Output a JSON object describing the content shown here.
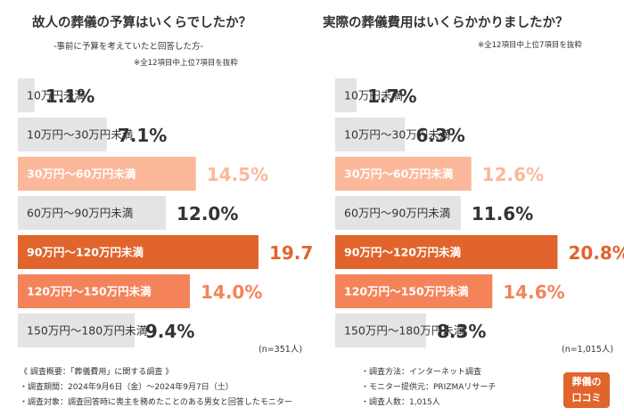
{
  "left": {
    "title": "故人の葬儀の予算はいくらでしたか？",
    "subtitle": "-事前に予算を考えていたと回答した方-",
    "note": "※全12項目中上位7項目を抜粋",
    "n_label": "(n=351人)"
  },
  "right": {
    "title": "実際の葬儀費用はいくらかかりましたか？",
    "note": "※全12項目中上位7項目を抜粋",
    "n_label": "(n=1,015人)"
  },
  "footer_left": [
    "《 調査概要：「葬儀費用」に関する調査 》",
    "・調査期間：2024年9月6日（金）～2024年9月7日（土）",
    "・調査対象：調査回答時に喪主を務めたことのある男女と回答したモニター"
  ],
  "footer_right": [
    "・調査方法：インターネット調査",
    "・モニター提供元：PRIZMAリサーチ",
    "・調査人数：1,015人"
  ],
  "logo": {
    "line1": "葬儀の",
    "line2": "口コミ"
  },
  "colors": {
    "gray": "#e4e4e4",
    "peach": "#fbb89a",
    "salmon": "#f4835a",
    "orange": "#e0642c",
    "label_dark": "#333333",
    "label_light": "#ffffff"
  },
  "chart_data": [
    {
      "type": "bar",
      "orientation": "horizontal",
      "categories": [
        "10万円未満",
        "10万円～30万円未満",
        "30万円～60万円未満",
        "60万円～90万円未満",
        "90万円～120万円未満",
        "120万円～150万円未満",
        "150万円～180万円未満"
      ],
      "values": [
        1.1,
        7.1,
        14.5,
        12.0,
        19.7,
        14.0,
        9.4
      ],
      "value_labels": [
        "1.1%",
        "7.1%",
        "14.5%",
        "12.0%",
        "19.7%",
        "14.0%",
        "9.4%"
      ],
      "bar_colors": [
        "#e4e4e4",
        "#e4e4e4",
        "#fbb89a",
        "#e4e4e4",
        "#e0642c",
        "#f4835a",
        "#e4e4e4"
      ],
      "value_colors": [
        "#333333",
        "#333333",
        "#fbb89a",
        "#333333",
        "#e0642c",
        "#f4835a",
        "#333333"
      ],
      "title": "故人の葬儀の予算はいくらでしたか？"
    },
    {
      "type": "bar",
      "orientation": "horizontal",
      "categories": [
        "10万円未満",
        "10万円～30万円未満",
        "30万円～60万円未満",
        "60万円～90万円未満",
        "90万円～120万円未満",
        "120万円～150万円未満",
        "150万円～180万円未満"
      ],
      "values": [
        1.7,
        6.3,
        12.6,
        11.6,
        20.8,
        14.6,
        8.3
      ],
      "value_labels": [
        "1.7%",
        "6.3%",
        "12.6%",
        "11.6%",
        "20.8%",
        "14.6%",
        "8.3%"
      ],
      "bar_colors": [
        "#e4e4e4",
        "#e4e4e4",
        "#fbb89a",
        "#e4e4e4",
        "#e0642c",
        "#f4835a",
        "#e4e4e4"
      ],
      "value_colors": [
        "#333333",
        "#333333",
        "#fbb89a",
        "#333333",
        "#e0642c",
        "#f4835a",
        "#333333"
      ],
      "title": "実際の葬儀費用はいくらかかりましたか？"
    }
  ]
}
